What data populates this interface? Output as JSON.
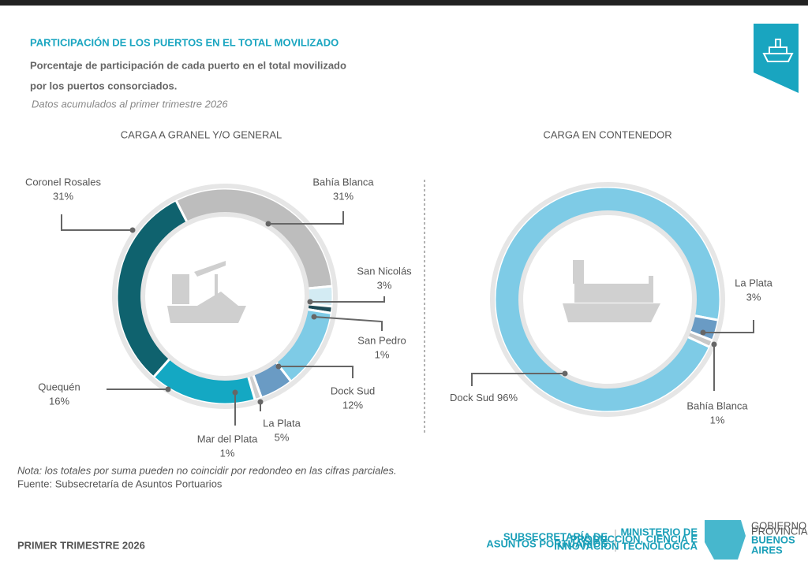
{
  "header": {
    "title": "PARTICIPACIÓN DE LOS PUERTOS EN EL TOTAL MOVILIZADO",
    "subtitle_lines": [
      "Porcentaje de participación de cada puerto en el total movilizado",
      "por los puertos consorciados."
    ],
    "date_note": "Datos acumulados al primer trimestre 2026"
  },
  "chart_data": [
    {
      "type": "donut",
      "title": "CARGA A GRANEL Y/O GENERAL",
      "categories": [
        "Bahía Blanca",
        "San Nicolás",
        "San Pedro",
        "Dock Sud",
        "La Plata",
        "Mar del Plata",
        "Quequén",
        "Coronel Rosales"
      ],
      "values": [
        31,
        3,
        1,
        12,
        5,
        1,
        16,
        31
      ],
      "value_labels": [
        "31%",
        "3%",
        "1%",
        "12%",
        "5%",
        "1%",
        "16%",
        "31%"
      ],
      "colors": [
        "#bdbdbd",
        "#d3ebf3",
        "#1c4b57",
        "#7ecbe6",
        "#6a9bc4",
        "#cfcfcf",
        "#14a8c3",
        "#0f626e"
      ]
    },
    {
      "type": "donut",
      "title": "CARGA EN CONTENEDOR",
      "categories": [
        "Dock Sud",
        "La Plata",
        "Bahía Blanca"
      ],
      "values": [
        96,
        3,
        1
      ],
      "value_labels": [
        "96%",
        "3%",
        "1%"
      ],
      "colors": [
        "#7ecbe6",
        "#6a9bc4",
        "#c8c8c8"
      ]
    }
  ],
  "notes": {
    "note": "Nota: los totales por suma pueden no coincidir por redondeo en las cifras parciales.",
    "source": "Fuente: Subsecretaría de Asuntos Portuarios"
  },
  "footer": {
    "period": "PRIMER TRIMESTRE 2026",
    "logo_1": [
      "SUBSECRETARÍA DE",
      "ASUNTOS PORTUARIOS"
    ],
    "logo_2": [
      "MINISTERIO DE",
      "PRODUCCIÓN, CIENCIA E",
      "INNOVACIÓN TECNOLÓGICA"
    ],
    "logo_3": [
      "GOBIERNO DE LA",
      "PROVINCIA DE",
      "BUENOS",
      "AIRES"
    ]
  }
}
